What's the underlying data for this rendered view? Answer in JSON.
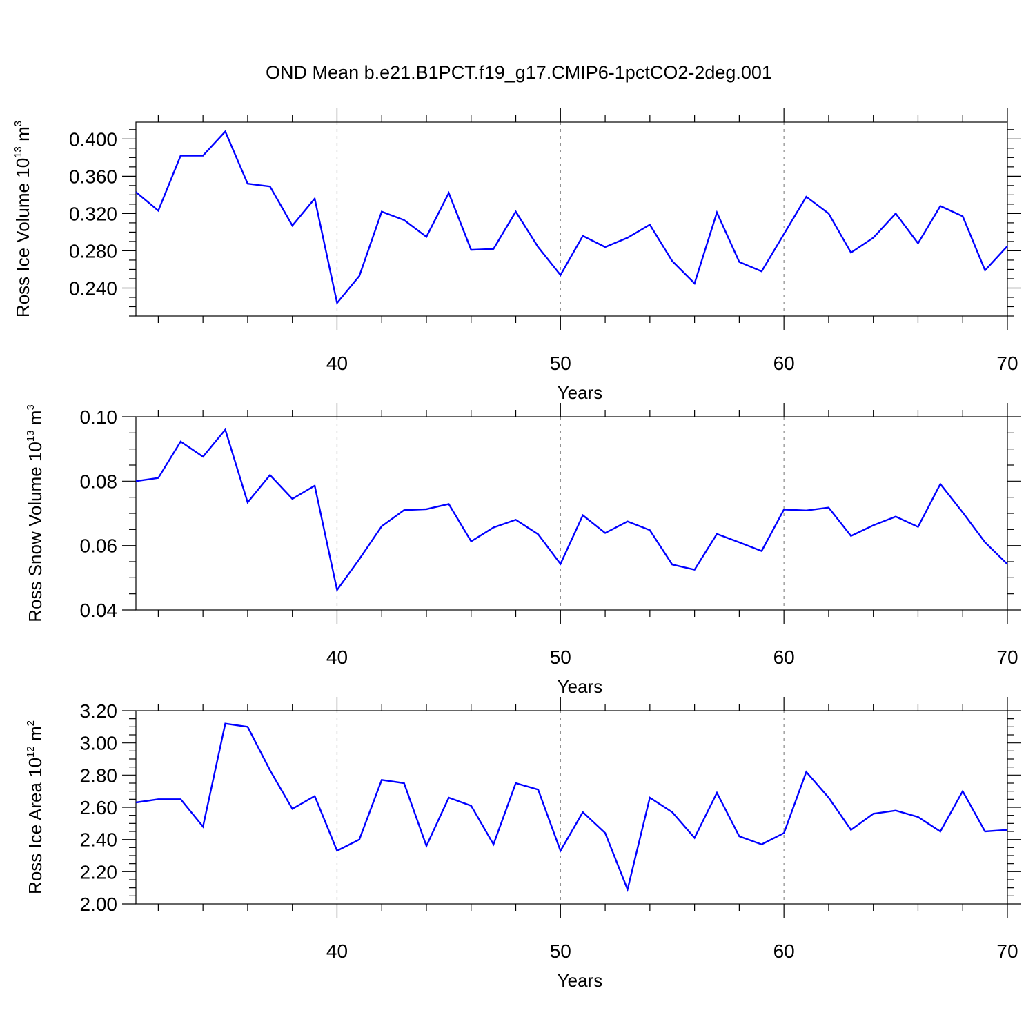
{
  "title": "OND Mean b.e21.B1PCT.f19_g17.CMIP6-1pctCO2-2deg.001",
  "series_color": "#0000ff",
  "chart_data": [
    {
      "type": "line",
      "ylabel": {
        "main": "Ross Ice Volume 10",
        "sup": "13",
        "unit": " m",
        "unit_sup": "3"
      },
      "xlabel": "Years",
      "xlim": [
        31,
        70
      ],
      "ylim": [
        0.21,
        0.418
      ],
      "xticks": [
        40,
        50,
        60,
        70
      ],
      "xtick_labels": [
        "40",
        "50",
        "60",
        "70"
      ],
      "x_minor_step": 2,
      "yticks": [
        0.24,
        0.28,
        0.32,
        0.36,
        0.4
      ],
      "ytick_labels": [
        "0.240",
        "0.280",
        "0.320",
        "0.360",
        "0.400"
      ],
      "y_minor_step": 0.01,
      "grid_x": [
        40,
        50,
        60
      ],
      "x": [
        31,
        32,
        33,
        34,
        35,
        36,
        37,
        38,
        39,
        40,
        41,
        42,
        43,
        44,
        45,
        46,
        47,
        48,
        49,
        50,
        51,
        52,
        53,
        54,
        55,
        56,
        57,
        58,
        59,
        60,
        61,
        62,
        63,
        64,
        65,
        66,
        67,
        68,
        69,
        70
      ],
      "values": [
        0.343,
        0.323,
        0.382,
        0.382,
        0.408,
        0.352,
        0.349,
        0.307,
        0.336,
        0.224,
        0.253,
        0.322,
        0.313,
        0.295,
        0.342,
        0.281,
        0.282,
        0.322,
        0.284,
        0.254,
        0.296,
        0.284,
        0.294,
        0.308,
        0.269,
        0.245,
        0.321,
        0.268,
        0.258,
        0.298,
        0.338,
        0.32,
        0.278,
        0.294,
        0.32,
        0.288,
        0.328,
        0.317,
        0.259,
        0.285
      ]
    },
    {
      "type": "line",
      "ylabel": {
        "main": "Ross Snow Volume 10",
        "sup": "13",
        "unit": " m",
        "unit_sup": "3"
      },
      "xlabel": "Years",
      "xlim": [
        31,
        70
      ],
      "ylim": [
        0.04,
        0.1
      ],
      "xticks": [
        40,
        50,
        60,
        70
      ],
      "xtick_labels": [
        "40",
        "50",
        "60",
        "70"
      ],
      "x_minor_step": 2,
      "yticks": [
        0.04,
        0.06,
        0.08,
        0.1
      ],
      "ytick_labels": [
        "0.04",
        "0.06",
        "0.08",
        "0.10"
      ],
      "y_minor_step": 0.005,
      "grid_x": [
        40,
        50,
        60
      ],
      "x": [
        31,
        32,
        33,
        34,
        35,
        36,
        37,
        38,
        39,
        40,
        41,
        42,
        43,
        44,
        45,
        46,
        47,
        48,
        49,
        50,
        51,
        52,
        53,
        54,
        55,
        56,
        57,
        58,
        59,
        60,
        61,
        62,
        63,
        64,
        65,
        66,
        67,
        68,
        69,
        70
      ],
      "values": [
        0.08,
        0.081,
        0.0923,
        0.0876,
        0.096,
        0.0734,
        0.0819,
        0.0745,
        0.0786,
        0.0462,
        0.0558,
        0.066,
        0.071,
        0.0713,
        0.0729,
        0.0613,
        0.0656,
        0.068,
        0.0635,
        0.0543,
        0.0694,
        0.0639,
        0.0675,
        0.0648,
        0.0541,
        0.0525,
        0.0636,
        0.061,
        0.0583,
        0.0712,
        0.0709,
        0.0718,
        0.063,
        0.0663,
        0.069,
        0.0658,
        0.0791,
        0.0703,
        0.061,
        0.0542
      ]
    },
    {
      "type": "line",
      "ylabel": {
        "main": "Ross Ice Area 10",
        "sup": "12",
        "unit": " m",
        "unit_sup": "2"
      },
      "xlabel": "Years",
      "xlim": [
        31,
        70
      ],
      "ylim": [
        2.0,
        3.2
      ],
      "xticks": [
        40,
        50,
        60,
        70
      ],
      "xtick_labels": [
        "40",
        "50",
        "60",
        "70"
      ],
      "x_minor_step": 2,
      "yticks": [
        2.0,
        2.2,
        2.4,
        2.6,
        2.8,
        3.0,
        3.2
      ],
      "ytick_labels": [
        "2.00",
        "2.20",
        "2.40",
        "2.60",
        "2.80",
        "3.00",
        "3.20"
      ],
      "y_minor_step": 0.05,
      "grid_x": [
        40,
        50,
        60
      ],
      "x": [
        31,
        32,
        33,
        34,
        35,
        36,
        37,
        38,
        39,
        40,
        41,
        42,
        43,
        44,
        45,
        46,
        47,
        48,
        49,
        50,
        51,
        52,
        53,
        54,
        55,
        56,
        57,
        58,
        59,
        60,
        61,
        62,
        63,
        64,
        65,
        66,
        67,
        68,
        69,
        70
      ],
      "values": [
        2.63,
        2.65,
        2.65,
        2.48,
        3.12,
        3.1,
        2.83,
        2.59,
        2.67,
        2.33,
        2.4,
        2.77,
        2.75,
        2.36,
        2.66,
        2.61,
        2.37,
        2.75,
        2.71,
        2.33,
        2.57,
        2.44,
        2.09,
        2.66,
        2.57,
        2.41,
        2.69,
        2.42,
        2.37,
        2.44,
        2.82,
        2.66,
        2.46,
        2.56,
        2.58,
        2.54,
        2.45,
        2.7,
        2.45,
        2.46
      ]
    }
  ]
}
